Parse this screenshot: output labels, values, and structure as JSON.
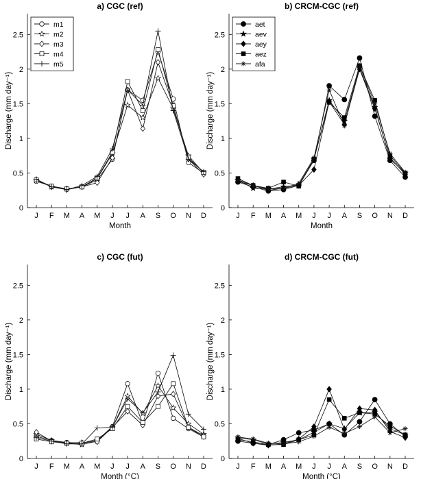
{
  "chart_data": [
    {
      "type": "line",
      "title": "a) CGC (ref)",
      "xlabel": "Month",
      "ylabel": "Discharge  (mm day⁻¹)",
      "categories": [
        "J",
        "F",
        "M",
        "A",
        "M",
        "J",
        "J",
        "A",
        "S",
        "O",
        "N",
        "D"
      ],
      "ylim": [
        0,
        2.8
      ],
      "yticks": [
        0,
        0.5,
        1,
        1.5,
        2,
        2.5
      ],
      "ytick_labels": [
        "0",
        "0.5",
        "1",
        "1.5",
        "2",
        "2.5"
      ],
      "legend_position": "top-left",
      "series": [
        {
          "name": "m1",
          "marker": "circle",
          "values": [
            0.38,
            0.31,
            0.27,
            0.3,
            0.4,
            0.7,
            1.7,
            1.55,
            2.25,
            1.57,
            0.65,
            0.5
          ]
        },
        {
          "name": "m2",
          "marker": "star",
          "values": [
            0.4,
            0.3,
            0.27,
            0.3,
            0.42,
            0.78,
            1.48,
            1.3,
            1.87,
            1.43,
            0.75,
            0.5
          ]
        },
        {
          "name": "m3",
          "marker": "diamond",
          "values": [
            0.4,
            0.3,
            0.26,
            0.3,
            0.36,
            0.72,
            1.7,
            1.14,
            2.1,
            1.47,
            0.7,
            0.48
          ]
        },
        {
          "name": "m4",
          "marker": "square",
          "values": [
            0.4,
            0.31,
            0.27,
            0.3,
            0.43,
            0.8,
            1.82,
            1.4,
            2.28,
            1.47,
            0.72,
            0.51
          ]
        },
        {
          "name": "m5",
          "marker": "plus",
          "values": [
            0.41,
            0.3,
            0.26,
            0.32,
            0.45,
            0.85,
            1.7,
            1.48,
            2.55,
            1.4,
            0.7,
            0.52
          ]
        }
      ]
    },
    {
      "type": "line",
      "title": "b) CRCM-CGC (ref)",
      "xlabel": "Month",
      "ylabel": "Discharge  (mm day⁻¹)",
      "categories": [
        "J",
        "F",
        "M",
        "A",
        "M",
        "J",
        "J",
        "A",
        "S",
        "O",
        "N",
        "D"
      ],
      "ylim": [
        0,
        2.8
      ],
      "yticks": [
        0,
        0.5,
        1,
        1.5,
        2,
        2.5
      ],
      "ytick_labels": [
        "0",
        "0.5",
        "1",
        "1.5",
        "2",
        "2.5"
      ],
      "legend_position": "top-left",
      "series": [
        {
          "name": "aet",
          "marker": "filled-circle",
          "values": [
            0.37,
            0.3,
            0.24,
            0.26,
            0.32,
            0.68,
            1.76,
            1.56,
            2.16,
            1.32,
            0.68,
            0.44
          ]
        },
        {
          "name": "aev",
          "marker": "filled-star",
          "values": [
            0.4,
            0.28,
            0.27,
            0.3,
            0.33,
            0.7,
            1.55,
            1.25,
            2.02,
            1.45,
            0.7,
            0.5
          ]
        },
        {
          "name": "aey",
          "marker": "filled-diamond",
          "values": [
            0.38,
            0.32,
            0.25,
            0.28,
            0.32,
            0.55,
            1.53,
            1.2,
            2.0,
            1.43,
            0.72,
            0.48
          ]
        },
        {
          "name": "aez",
          "marker": "filled-square",
          "values": [
            0.42,
            0.32,
            0.28,
            0.37,
            0.31,
            0.7,
            1.52,
            1.3,
            2.05,
            1.55,
            0.75,
            0.5
          ]
        },
        {
          "name": "afa",
          "marker": "asterisk",
          "values": [
            0.4,
            0.32,
            0.27,
            0.28,
            0.35,
            0.72,
            1.7,
            1.18,
            2.05,
            1.5,
            0.78,
            0.51
          ]
        }
      ]
    },
    {
      "type": "line",
      "title": "c) CGC (fut)",
      "xlabel": "Month (°C)",
      "ylabel": "Discharge  (mm day⁻¹)",
      "categories": [
        "J",
        "F",
        "M",
        "A",
        "M",
        "J",
        "J",
        "A",
        "S",
        "O",
        "N",
        "D"
      ],
      "ylim": [
        0,
        2.8
      ],
      "yticks": [
        0,
        0.5,
        1,
        1.5,
        2,
        2.5
      ],
      "ytick_labels": [
        "0",
        "0.5",
        "1",
        "1.5",
        "2",
        "2.5"
      ],
      "series": [
        {
          "name": "m1",
          "marker": "circle",
          "values": [
            0.32,
            0.26,
            0.23,
            0.22,
            0.26,
            0.46,
            1.08,
            0.5,
            1.23,
            0.58,
            0.43,
            0.31
          ]
        },
        {
          "name": "m2",
          "marker": "star",
          "values": [
            0.35,
            0.26,
            0.22,
            0.2,
            0.25,
            0.45,
            0.9,
            0.65,
            1.05,
            0.73,
            0.5,
            0.35
          ]
        },
        {
          "name": "m3",
          "marker": "diamond",
          "values": [
            0.38,
            0.25,
            0.22,
            0.23,
            0.24,
            0.45,
            0.68,
            0.48,
            0.9,
            0.93,
            0.45,
            0.33
          ]
        },
        {
          "name": "m4",
          "marker": "square",
          "values": [
            0.28,
            0.24,
            0.22,
            0.22,
            0.28,
            0.43,
            0.75,
            0.52,
            0.75,
            1.08,
            0.45,
            0.31
          ]
        },
        {
          "name": "m5",
          "marker": "plus",
          "values": [
            0.3,
            0.25,
            0.21,
            0.21,
            0.44,
            0.45,
            0.86,
            0.66,
            0.96,
            1.49,
            0.64,
            0.42
          ]
        }
      ]
    },
    {
      "type": "line",
      "title": "d) CRCM-CGC (fut)",
      "xlabel": "Month (°C)",
      "ylabel": "Discharge  (mm day⁻¹)",
      "categories": [
        "J",
        "F",
        "M",
        "A",
        "M",
        "J",
        "J",
        "A",
        "S",
        "O",
        "N",
        "D"
      ],
      "ylim": [
        0,
        2.8
      ],
      "yticks": [
        0,
        0.5,
        1,
        1.5,
        2,
        2.5
      ],
      "ytick_labels": [
        "0",
        "0.5",
        "1",
        "1.5",
        "2",
        "2.5"
      ],
      "series": [
        {
          "name": "aet",
          "marker": "filled-circle",
          "values": [
            0.25,
            0.22,
            0.2,
            0.27,
            0.37,
            0.41,
            0.5,
            0.34,
            0.53,
            0.85,
            0.5,
            0.32
          ]
        },
        {
          "name": "aev",
          "marker": "filled-star",
          "values": [
            0.3,
            0.27,
            0.21,
            0.23,
            0.27,
            0.38,
            0.5,
            0.43,
            0.66,
            0.67,
            0.43,
            0.34
          ]
        },
        {
          "name": "aey",
          "marker": "filled-diamond",
          "values": [
            0.29,
            0.22,
            0.19,
            0.21,
            0.28,
            0.46,
            1.0,
            0.42,
            0.72,
            0.7,
            0.39,
            0.3
          ]
        },
        {
          "name": "aez",
          "marker": "filled-square",
          "values": [
            0.27,
            0.24,
            0.2,
            0.2,
            0.27,
            0.34,
            0.85,
            0.58,
            0.66,
            0.64,
            0.47,
            0.34
          ]
        },
        {
          "name": "afa",
          "marker": "asterisk",
          "values": [
            0.31,
            0.28,
            0.22,
            0.21,
            0.24,
            0.32,
            0.45,
            0.36,
            0.46,
            0.6,
            0.37,
            0.43
          ]
        }
      ]
    }
  ]
}
